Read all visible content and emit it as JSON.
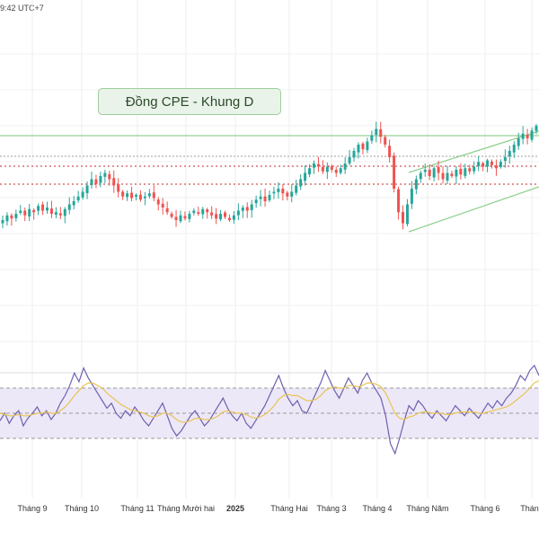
{
  "header": {
    "clock": "9:42 UTC+7"
  },
  "chart_data": [
    {
      "type": "candlestick",
      "title": "Đồng CPE - Khung D",
      "grid": true,
      "x_ticks": [
        "Tháng 9",
        "Tháng 10",
        "Tháng 11",
        "Tháng Mười hai",
        "2025",
        "Tháng Hai",
        "Tháng 3",
        "Tháng 4",
        "Tháng Năm",
        "Tháng 6",
        "Tháng"
      ],
      "close_series_normalized": [
        0.4,
        0.43,
        0.41,
        0.44,
        0.46,
        0.43,
        0.47,
        0.45,
        0.49,
        0.46,
        0.48,
        0.44,
        0.45,
        0.43,
        0.47,
        0.5,
        0.52,
        0.55,
        0.58,
        0.62,
        0.66,
        0.63,
        0.68,
        0.7,
        0.66,
        0.62,
        0.58,
        0.55,
        0.57,
        0.54,
        0.56,
        0.53,
        0.55,
        0.57,
        0.54,
        0.5,
        0.48,
        0.45,
        0.42,
        0.4,
        0.43,
        0.41,
        0.44,
        0.46,
        0.44,
        0.47,
        0.45,
        0.43,
        0.41,
        0.44,
        0.42,
        0.4,
        0.43,
        0.46,
        0.48,
        0.46,
        0.5,
        0.53,
        0.55,
        0.52,
        0.56,
        0.58,
        0.6,
        0.57,
        0.55,
        0.58,
        0.62,
        0.66,
        0.7,
        0.73,
        0.76,
        0.74,
        0.71,
        0.74,
        0.72,
        0.7,
        0.73,
        0.76,
        0.8,
        0.84,
        0.88,
        0.85,
        0.9,
        0.94,
        0.98,
        0.93,
        0.88,
        0.8,
        0.6,
        0.45,
        0.38,
        0.5,
        0.6,
        0.66,
        0.7,
        0.72,
        0.68,
        0.73,
        0.7,
        0.66,
        0.7,
        0.68,
        0.72,
        0.69,
        0.73,
        0.71,
        0.74,
        0.77,
        0.74,
        0.78,
        0.75,
        0.73,
        0.77,
        0.8,
        0.84,
        0.88,
        0.92,
        0.95,
        0.92,
        0.97,
        1.0
      ],
      "annotations": {
        "horizontal_solid": [
          "resistance"
        ],
        "horizontal_dotted": [
          "level_1",
          "level_2",
          "level_3"
        ],
        "channel": "ascending"
      }
    },
    {
      "type": "line",
      "indicator": "RSI",
      "series": [
        {
          "role": "rsi",
          "color": "#6f5fb0",
          "values": [
            44,
            50,
            42,
            48,
            52,
            40,
            46,
            50,
            55,
            48,
            52,
            45,
            50,
            58,
            64,
            72,
            82,
            75,
            86,
            78,
            72,
            66,
            60,
            54,
            58,
            50,
            46,
            52,
            48,
            55,
            50,
            44,
            40,
            46,
            52,
            58,
            48,
            38,
            32,
            36,
            42,
            48,
            52,
            46,
            40,
            44,
            50,
            56,
            62,
            54,
            48,
            44,
            50,
            42,
            38,
            44,
            50,
            56,
            64,
            72,
            80,
            70,
            62,
            56,
            60,
            52,
            50,
            58,
            66,
            74,
            84,
            76,
            68,
            62,
            70,
            78,
            72,
            66,
            76,
            82,
            74,
            68,
            62,
            48,
            26,
            18,
            30,
            44,
            56,
            52,
            60,
            56,
            50,
            46,
            52,
            48,
            44,
            50,
            56,
            52,
            48,
            54,
            50,
            46,
            52,
            58,
            54,
            60,
            56,
            62,
            66,
            72,
            80,
            76,
            84,
            88,
            80
          ]
        },
        {
          "role": "signal",
          "color": "#e8c454",
          "values": [
            50,
            49,
            48,
            48,
            49,
            48,
            48,
            49,
            50,
            50,
            51,
            50,
            50,
            52,
            55,
            59,
            64,
            68,
            72,
            74,
            74,
            72,
            70,
            66,
            63,
            60,
            57,
            55,
            53,
            52,
            51,
            50,
            48,
            47,
            48,
            50,
            50,
            48,
            45,
            43,
            43,
            44,
            46,
            46,
            45,
            45,
            46,
            48,
            51,
            52,
            51,
            50,
            50,
            49,
            47,
            46,
            47,
            49,
            52,
            56,
            61,
            64,
            65,
            64,
            64,
            62,
            60,
            60,
            61,
            64,
            68,
            70,
            71,
            70,
            70,
            72,
            72,
            71,
            72,
            74,
            74,
            73,
            71,
            66,
            58,
            50,
            46,
            45,
            47,
            48,
            50,
            51,
            51,
            50,
            50,
            50,
            49,
            49,
            50,
            51,
            51,
            51,
            51,
            50,
            50,
            51,
            52,
            53,
            54,
            55,
            57,
            60,
            63,
            66,
            70,
            74,
            76
          ]
        }
      ],
      "band": {
        "upper": 70,
        "middle": 50,
        "lower": 30
      },
      "ylim": [
        0,
        100
      ]
    }
  ]
}
